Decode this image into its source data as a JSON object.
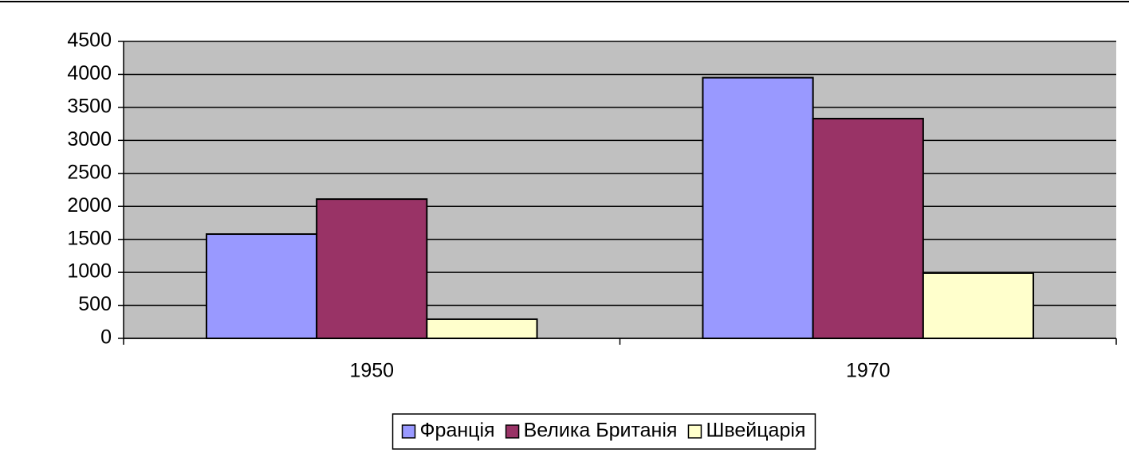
{
  "chart_data": {
    "type": "bar",
    "categories": [
      "1950",
      "1970"
    ],
    "series": [
      {
        "name": "Франція",
        "color": "#9999ff",
        "values": [
          1580,
          3950
        ]
      },
      {
        "name": "Велика Британія",
        "color": "#993366",
        "values": [
          2110,
          3330
        ]
      },
      {
        "name": "Швейцарія",
        "color": "#ffffcc",
        "values": [
          290,
          990
        ]
      }
    ],
    "ylim": [
      0,
      4500
    ],
    "yticks": [
      0,
      500,
      1000,
      1500,
      2000,
      2500,
      3000,
      3500,
      4000,
      4500
    ],
    "grid": true,
    "legend": "bottom"
  }
}
